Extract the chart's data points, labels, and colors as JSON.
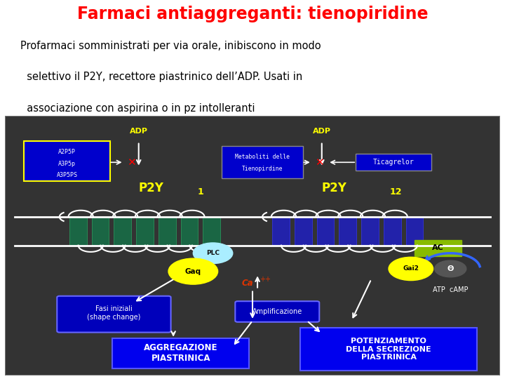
{
  "title": "Farmaci antiaggreganti: tienopiridine",
  "title_color": "#FF0000",
  "subtitle_lines": [
    "Profarmaci somministrati per via orale, inibiscono in modo",
    "  selettivo il P2Y, recettore piastrinico dell’ADP. Usati in",
    "  associazione con aspirina o in pz intolleranti"
  ],
  "subtitle_color": "#000000",
  "bg_dark": "#333333",
  "adp_color": "#FFFF00",
  "p2y_color": "#FFFF00",
  "blue_box_bg": "#0000CC",
  "green_receptor_color": "#1A6644",
  "purple_receptor_color": "#2222AA",
  "plc_color": "#AAEEFF",
  "gaq_color": "#FFFF00",
  "gai2_color": "#FFFF00",
  "ac_color": "#88BB00",
  "ca_color": "#DD3300",
  "arrow_color": "#FFFFFF",
  "agg_box_bg": "#0000EE",
  "pot_box_bg": "#0000EE",
  "blue_arrow_color": "#3366FF"
}
